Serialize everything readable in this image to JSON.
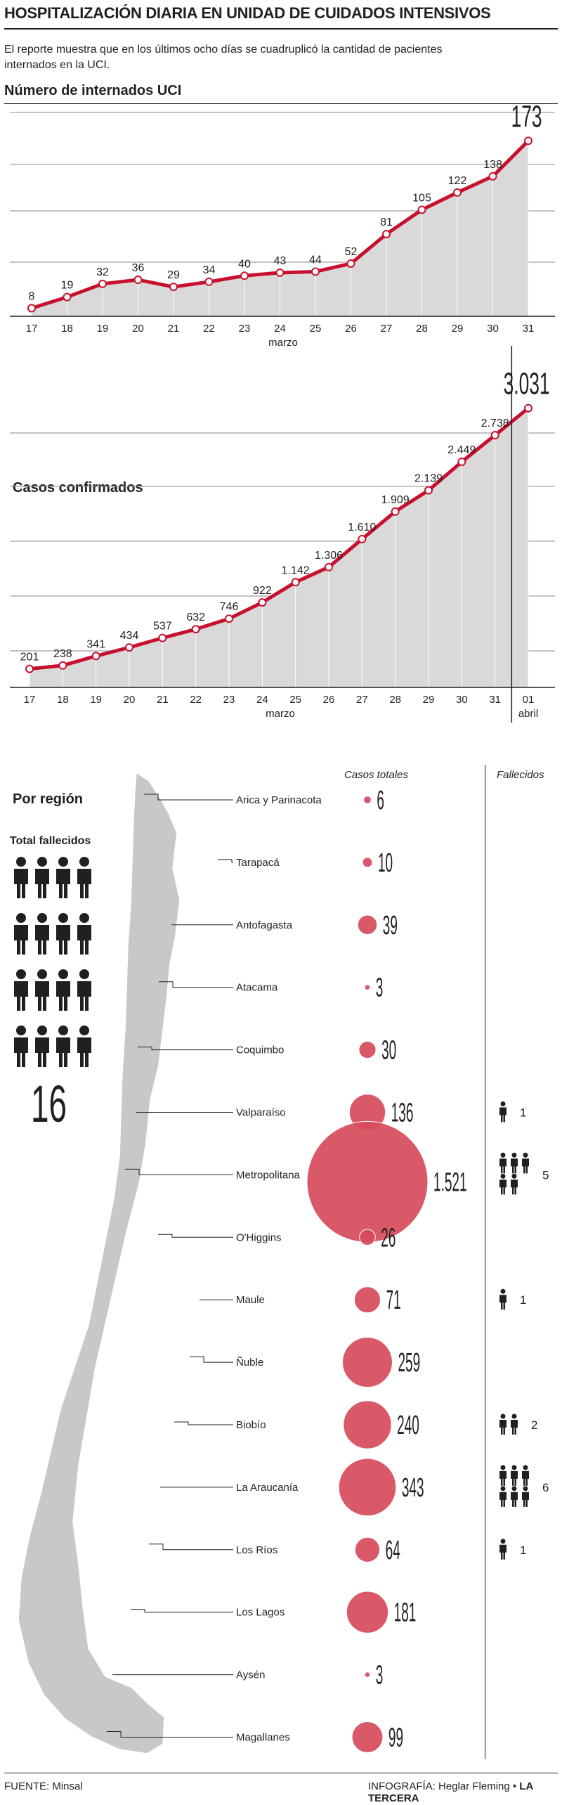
{
  "title": "HOSPITALIZACIÓN DIARIA EN UNIDAD DE CUIDADOS INTENSIVOS",
  "subtitle": "El reporte muestra que en los últimos ocho días se cuadruplicó la cantidad de pacientes internados en la UCI.",
  "colors": {
    "accent": "#c8102e",
    "fill": "#d9d9d9",
    "bubble": "#d64b5c",
    "ink": "#231f20",
    "map": "#c8c8c8"
  },
  "chart_data": [
    {
      "type": "area",
      "title": "Número de internados UCI",
      "xlabel": "marzo",
      "x": [
        "17",
        "18",
        "19",
        "20",
        "21",
        "22",
        "23",
        "24",
        "25",
        "26",
        "27",
        "28",
        "29",
        "30",
        "31"
      ],
      "values": [
        8,
        19,
        32,
        36,
        29,
        34,
        40,
        43,
        44,
        52,
        81,
        105,
        122,
        138,
        173
      ],
      "value_labels": [
        "8",
        "19",
        "32",
        "36",
        "29",
        "34",
        "40",
        "43",
        "44",
        "52",
        "81",
        "105",
        "122",
        "138",
        "173"
      ],
      "ylim": [
        0,
        185
      ],
      "grid": true
    },
    {
      "type": "area",
      "title": "Casos confirmados",
      "xlabel": "marzo",
      "x": [
        "17",
        "18",
        "19",
        "20",
        "21",
        "22",
        "23",
        "24",
        "25",
        "26",
        "27",
        "28",
        "29",
        "30",
        "31",
        "01"
      ],
      "x_sub": [
        "",
        "",
        "",
        "",
        "",
        "",
        "",
        "",
        "",
        "",
        "",
        "",
        "",
        "",
        "",
        "abril"
      ],
      "values": [
        201,
        238,
        341,
        434,
        537,
        632,
        746,
        922,
        1142,
        1306,
        1610,
        1909,
        2139,
        2449,
        2738,
        3031
      ],
      "value_labels": [
        "201",
        "238",
        "341",
        "434",
        "537",
        "632",
        "746",
        "922",
        "1.142",
        "1.306",
        "1.610",
        "1.909",
        "2.139",
        "2.449",
        "2.738",
        "3.031"
      ],
      "ylim": [
        0,
        3250
      ],
      "grid": true
    },
    {
      "type": "bubble",
      "title": "Por región",
      "column_headers": {
        "cases": "Casos totales",
        "deaths": "Fallecidos"
      },
      "total_deaths_label": "Total fallecidos",
      "total_deaths": 16,
      "regions": [
        {
          "name": "Arica y Parinacota",
          "cases": 6,
          "cases_label": "6",
          "deaths": 0
        },
        {
          "name": "Tarapacá",
          "cases": 10,
          "cases_label": "10",
          "deaths": 0
        },
        {
          "name": "Antofagasta",
          "cases": 39,
          "cases_label": "39",
          "deaths": 0
        },
        {
          "name": "Atacama",
          "cases": 3,
          "cases_label": "3",
          "deaths": 0
        },
        {
          "name": "Coquimbo",
          "cases": 30,
          "cases_label": "30",
          "deaths": 0
        },
        {
          "name": "Valparaíso",
          "cases": 136,
          "cases_label": "136",
          "deaths": 1
        },
        {
          "name": "Metropolitana",
          "cases": 1521,
          "cases_label": "1.521",
          "deaths": 5
        },
        {
          "name": "O'Higgins",
          "cases": 26,
          "cases_label": "26",
          "deaths": 0
        },
        {
          "name": "Maule",
          "cases": 71,
          "cases_label": "71",
          "deaths": 1
        },
        {
          "name": "Ñuble",
          "cases": 259,
          "cases_label": "259",
          "deaths": 0
        },
        {
          "name": "Biobío",
          "cases": 240,
          "cases_label": "240",
          "deaths": 2
        },
        {
          "name": "La Araucanía",
          "cases": 343,
          "cases_label": "343",
          "deaths": 6
        },
        {
          "name": "Los Ríos",
          "cases": 64,
          "cases_label": "64",
          "deaths": 1
        },
        {
          "name": "Los Lagos",
          "cases": 181,
          "cases_label": "181",
          "deaths": 0
        },
        {
          "name": "Aysén",
          "cases": 3,
          "cases_label": "3",
          "deaths": 0
        },
        {
          "name": "Magallanes",
          "cases": 99,
          "cases_label": "99",
          "deaths": 0
        }
      ]
    }
  ],
  "footer": {
    "source": "FUENTE: Minsal",
    "credit_prefix": "INFOGRAFÍA: Heglar Fleming • ",
    "credit_brand": "LA TERCERA"
  }
}
